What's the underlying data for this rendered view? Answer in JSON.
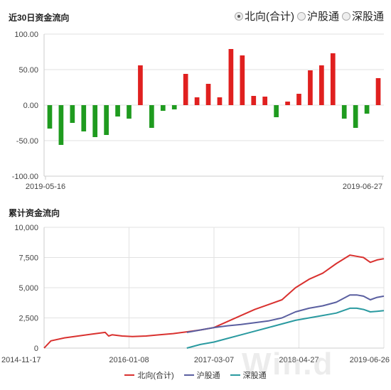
{
  "tabs": [
    {
      "label": "北向(合计)",
      "selected": true
    },
    {
      "label": "沪股通",
      "selected": false
    },
    {
      "label": "深股通",
      "selected": false
    }
  ],
  "watermark": "Win.d",
  "colors": {
    "up": "#e0201f",
    "down": "#1f9b1f",
    "north": "#d9312f",
    "sh": "#5a5fa0",
    "sz": "#2a9aa0",
    "grid": "#e2e2e2"
  },
  "chart_data": [
    {
      "type": "bar",
      "title": "近30日资金流向",
      "ylim": [
        -100,
        100
      ],
      "yticks": [
        "100.00",
        "50.00",
        "0.00",
        "-50.00",
        "-100.00"
      ],
      "x_start_label": "2019-05-16",
      "x_end_label": "2019-06-27",
      "values": [
        -33,
        -56,
        -25,
        -37,
        -45,
        -42,
        -16,
        -19,
        56,
        -32,
        -8,
        -6,
        44,
        11,
        30,
        11,
        79,
        70,
        13,
        12,
        -17,
        5,
        16,
        49,
        56,
        73,
        -19,
        -32,
        -12,
        38
      ]
    },
    {
      "type": "line",
      "title": "累计资金流向",
      "ylim": [
        0,
        10000
      ],
      "yticks": [
        "10,000",
        "7,500",
        "5,000",
        "2,500",
        "0"
      ],
      "x_labels": [
        "2014-11-17",
        "2016-01-08",
        "2017-03-07",
        "2018-04-27",
        "2019-06-26"
      ],
      "x_range": [
        0,
        1.0
      ],
      "series": [
        {
          "name": "北向(合计)",
          "x": [
            0,
            0.02,
            0.06,
            0.1,
            0.14,
            0.18,
            0.19,
            0.2,
            0.23,
            0.26,
            0.3,
            0.34,
            0.38,
            0.42,
            0.46,
            0.5,
            0.54,
            0.58,
            0.62,
            0.66,
            0.7,
            0.74,
            0.78,
            0.82,
            0.86,
            0.9,
            0.92,
            0.94,
            0.96,
            0.98,
            1.0
          ],
          "y": [
            0,
            600,
            850,
            1000,
            1150,
            1300,
            1000,
            1100,
            1000,
            950,
            1000,
            1100,
            1200,
            1350,
            1500,
            1700,
            2200,
            2700,
            3200,
            3600,
            4000,
            5000,
            5700,
            6200,
            7000,
            7700,
            7600,
            7500,
            7100,
            7300,
            7400
          ]
        },
        {
          "name": "沪股通",
          "x": [
            0.42,
            0.46,
            0.5,
            0.54,
            0.58,
            0.62,
            0.66,
            0.7,
            0.74,
            0.78,
            0.82,
            0.86,
            0.9,
            0.92,
            0.94,
            0.96,
            0.98,
            1.0
          ],
          "y": [
            1300,
            1500,
            1700,
            1850,
            1950,
            2100,
            2250,
            2500,
            3000,
            3300,
            3500,
            3800,
            4400,
            4400,
            4300,
            4000,
            4200,
            4300
          ]
        },
        {
          "name": "深股通",
          "x": [
            0.42,
            0.46,
            0.5,
            0.54,
            0.58,
            0.62,
            0.66,
            0.7,
            0.74,
            0.78,
            0.82,
            0.86,
            0.9,
            0.92,
            0.94,
            0.96,
            0.98,
            1.0
          ],
          "y": [
            0,
            300,
            500,
            800,
            1100,
            1400,
            1700,
            2000,
            2300,
            2500,
            2700,
            2900,
            3300,
            3300,
            3200,
            3000,
            3050,
            3100
          ]
        }
      ]
    }
  ]
}
